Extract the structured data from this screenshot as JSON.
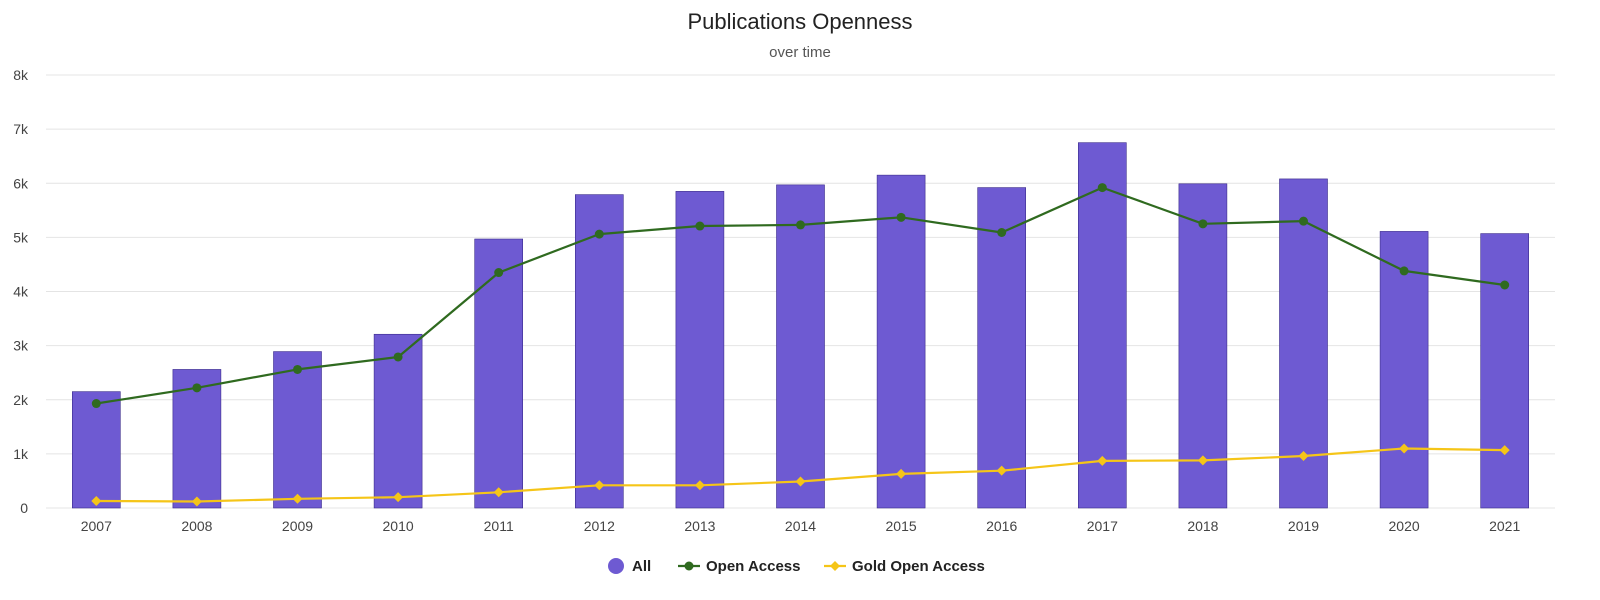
{
  "chart_data": {
    "type": "bar",
    "title": "Publications Openness",
    "subtitle": "over time",
    "xlabel": "",
    "ylabel": "",
    "ylim": [
      0,
      8000
    ],
    "yticks": [
      0,
      1000,
      2000,
      3000,
      4000,
      5000,
      6000,
      7000,
      8000
    ],
    "ytick_labels": [
      "0",
      "1k",
      "2k",
      "3k",
      "4k",
      "5k",
      "6k",
      "7k",
      "8k"
    ],
    "grid": true,
    "legend_position": "bottom-center",
    "categories": [
      "2007",
      "2008",
      "2009",
      "2010",
      "2011",
      "2012",
      "2013",
      "2014",
      "2015",
      "2016",
      "2017",
      "2018",
      "2019",
      "2020",
      "2021"
    ],
    "series": [
      {
        "name": "All",
        "type": "bar",
        "color": "#6e5ad2",
        "values": [
          2150,
          2560,
          2890,
          3210,
          4970,
          5790,
          5850,
          5970,
          6150,
          5920,
          6750,
          5990,
          6080,
          5110,
          5070
        ]
      },
      {
        "name": "Open Access",
        "type": "line",
        "marker": "circle",
        "color": "#2f6a1f",
        "values": [
          1930,
          2220,
          2560,
          2790,
          4350,
          5060,
          5210,
          5230,
          5370,
          5090,
          5920,
          5250,
          5300,
          4380,
          4120
        ]
      },
      {
        "name": "Gold Open Access",
        "type": "line",
        "marker": "diamond",
        "color": "#f5c518",
        "values": [
          130,
          120,
          170,
          200,
          290,
          420,
          420,
          490,
          630,
          690,
          870,
          880,
          960,
          1100,
          1070
        ]
      }
    ]
  }
}
